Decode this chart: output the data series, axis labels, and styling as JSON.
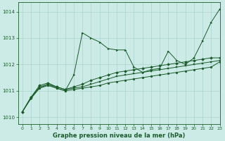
{
  "background_color": "#cceae6",
  "grid_color": "#aad4ce",
  "line_color": "#1a5c2a",
  "xlabel": "Graphe pression niveau de la mer (hPa)",
  "xlim": [
    -0.5,
    23
  ],
  "ylim": [
    1009.75,
    1014.35
  ],
  "yticks": [
    1010,
    1011,
    1012,
    1013,
    1014
  ],
  "xticks": [
    0,
    1,
    2,
    3,
    4,
    5,
    6,
    7,
    8,
    9,
    10,
    11,
    12,
    13,
    14,
    15,
    16,
    17,
    18,
    19,
    20,
    21,
    22,
    23
  ],
  "series": [
    [
      1010.2,
      1010.7,
      1011.1,
      1011.25,
      1011.1,
      1011.0,
      1011.6,
      1013.2,
      1013.0,
      1012.85,
      1012.6,
      1012.55,
      1012.55,
      1011.9,
      1011.7,
      1011.8,
      1011.85,
      1012.5,
      1012.15,
      1012.0,
      1012.25,
      1012.9,
      1013.6,
      1014.1
    ],
    [
      1010.2,
      1010.75,
      1011.2,
      1011.3,
      1011.15,
      1011.05,
      1011.15,
      1011.25,
      1011.4,
      1011.5,
      1011.6,
      1011.7,
      1011.75,
      1011.8,
      1011.85,
      1011.9,
      1011.95,
      1012.0,
      1012.05,
      1012.1,
      1012.15,
      1012.2,
      1012.25,
      1012.25
    ],
    [
      1010.2,
      1010.75,
      1011.15,
      1011.25,
      1011.15,
      1011.05,
      1011.1,
      1011.15,
      1011.25,
      1011.35,
      1011.45,
      1011.55,
      1011.6,
      1011.65,
      1011.7,
      1011.75,
      1011.8,
      1011.85,
      1011.9,
      1011.95,
      1012.0,
      1012.05,
      1012.1,
      1012.15
    ],
    [
      1010.2,
      1010.75,
      1011.1,
      1011.2,
      1011.1,
      1011.0,
      1011.05,
      1011.1,
      1011.15,
      1011.2,
      1011.3,
      1011.35,
      1011.4,
      1011.45,
      1011.5,
      1011.55,
      1011.6,
      1011.65,
      1011.7,
      1011.75,
      1011.8,
      1011.85,
      1011.9,
      1012.1
    ]
  ],
  "figsize": [
    3.2,
    2.0
  ],
  "dpi": 100
}
